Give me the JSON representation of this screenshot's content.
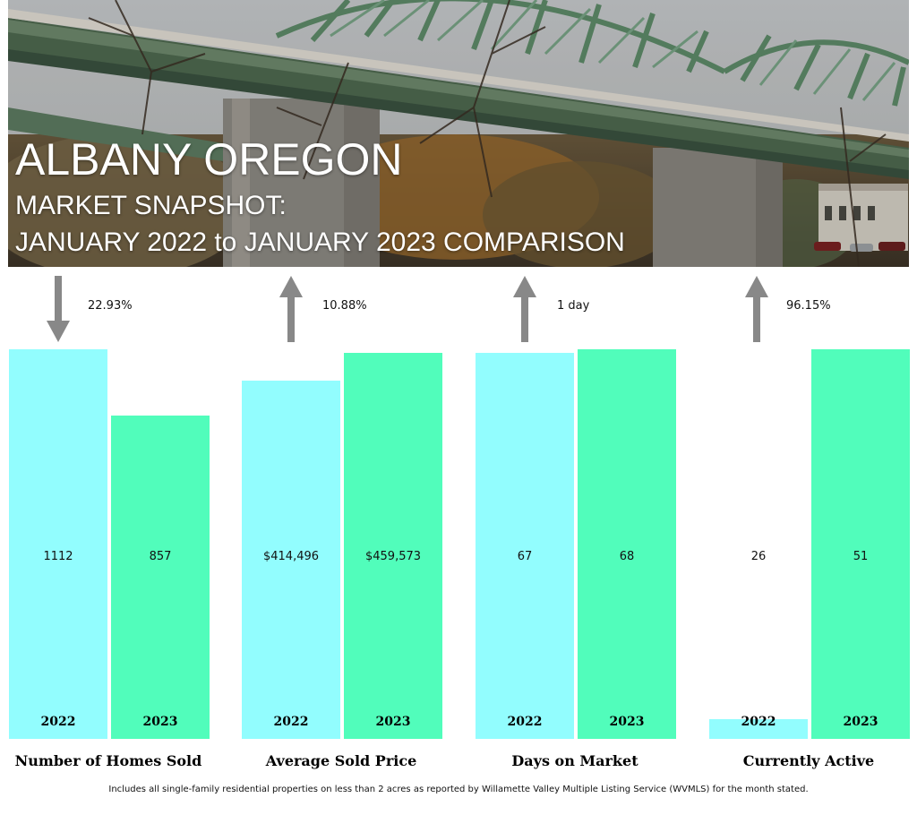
{
  "header": {
    "title": "ALBANY OREGON",
    "subtitle_line1": "MARKET SNAPSHOT:",
    "subtitle_line2": "JANUARY 2022 to JANUARY 2023 COMPARISON"
  },
  "colors": {
    "year_2022": "#92FDFE",
    "year_2023": "#51FDBB",
    "arrow": "#888888"
  },
  "chart_data": {
    "type": "bar",
    "series": [
      {
        "name": "2022",
        "color": "#92FDFE"
      },
      {
        "name": "2023",
        "color": "#51FDBB"
      }
    ],
    "groups": [
      {
        "category": "Number of Homes Sold",
        "values": [
          1112,
          857
        ],
        "labels": [
          "1112",
          "857"
        ],
        "change": "22.93%",
        "direction": "down"
      },
      {
        "category": "Average Sold Price",
        "values": [
          414496,
          459573
        ],
        "labels": [
          "$414,496",
          "$459,573"
        ],
        "change": "10.88%",
        "direction": "up"
      },
      {
        "category": "Days on Market",
        "values": [
          67,
          68
        ],
        "labels": [
          "67",
          "68"
        ],
        "change": "1 day",
        "direction": "up"
      },
      {
        "category": "Currently Active",
        "values": [
          26,
          51
        ],
        "labels": [
          "26",
          "51"
        ],
        "change": "96.15%",
        "direction": "up"
      }
    ],
    "fill_fractions": [
      [
        1.0,
        0.83
      ],
      [
        0.92,
        0.99
      ],
      [
        0.99,
        1.0
      ],
      [
        0.05,
        1.0
      ]
    ]
  },
  "footnote": "Includes all single-family residential properties on less than 2 acres as reported by Willamette Valley Multiple Listing Service (WVMLS) for the month stated."
}
